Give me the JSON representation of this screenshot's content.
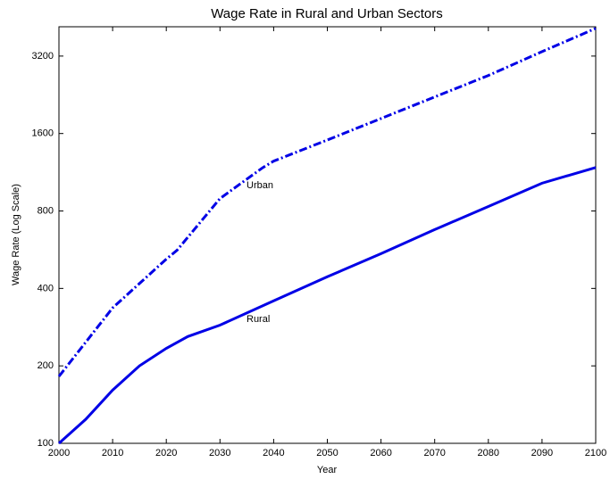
{
  "chart_data": {
    "type": "line",
    "title": "Wage Rate in Rural and Urban Sectors",
    "x_label": "Year",
    "y_label": "Wage Rate (Log Scale)",
    "xlim": [
      2000,
      2100
    ],
    "xticks": [
      2000,
      2010,
      2020,
      2030,
      2040,
      2050,
      2060,
      2070,
      2080,
      2090,
      2100
    ],
    "ylim": [
      100,
      4160
    ],
    "yticks": [
      100,
      200,
      400,
      800,
      1600,
      3200
    ],
    "y_log_scale": true,
    "grid": false,
    "series": [
      {
        "name": "Urban",
        "color": "#0000e6",
        "style": "dashdot",
        "x": [
          2000,
          2010,
          2020,
          2022,
          2030,
          2035,
          2038,
          2040,
          2050,
          2060,
          2070,
          2080,
          2090,
          2100
        ],
        "values": [
          182,
          336,
          520,
          563,
          894,
          1064,
          1180,
          1250,
          1510,
          1830,
          2220,
          2690,
          3330,
          4100
        ]
      },
      {
        "name": "Rural",
        "color": "#0000e6",
        "style": "solid",
        "x": [
          2000,
          2005,
          2010,
          2015,
          2020,
          2024,
          2030,
          2040,
          2050,
          2060,
          2070,
          2080,
          2090,
          2100
        ],
        "values": [
          100,
          124,
          161,
          200,
          234,
          260,
          288,
          358,
          444,
          546,
          677,
          833,
          1026,
          1180
        ]
      }
    ]
  }
}
